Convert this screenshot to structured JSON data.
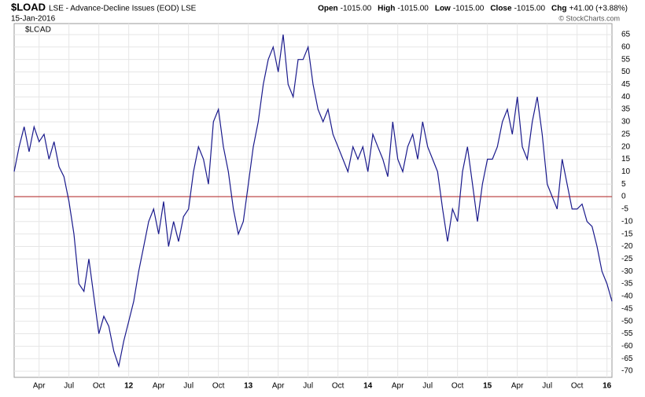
{
  "header": {
    "symbol": "$LOAD",
    "description": "LSE - Advance-Decline Issues (EOD) LSE",
    "date": "15-Jan-2016",
    "quote": [
      {
        "label": "Open",
        "value": "-1015.00"
      },
      {
        "label": "High",
        "value": "-1015.00"
      },
      {
        "label": "Low",
        "value": "-1015.00"
      },
      {
        "label": "Close",
        "value": "-1015.00"
      },
      {
        "label": "Chg",
        "value": "+41.00 (+3.88%)"
      }
    ],
    "credit": "© StockCharts.com"
  },
  "chart_data": {
    "type": "line",
    "categories": [
      null,
      null,
      null,
      null,
      null,
      "Apr",
      null,
      null,
      null,
      null,
      null,
      "Jul",
      null,
      null,
      null,
      null,
      null,
      "Oct",
      null,
      null,
      null,
      null,
      null,
      "12",
      null,
      null,
      null,
      null,
      null,
      "Apr",
      null,
      null,
      null,
      null,
      null,
      "Jul",
      null,
      null,
      null,
      null,
      null,
      "Oct",
      null,
      null,
      null,
      null,
      null,
      "13",
      null,
      null,
      null,
      null,
      null,
      "Apr",
      null,
      null,
      null,
      null,
      null,
      "Jul",
      null,
      null,
      null,
      null,
      null,
      "Oct",
      null,
      null,
      null,
      null,
      null,
      "14",
      null,
      null,
      null,
      null,
      null,
      "Apr",
      null,
      null,
      null,
      null,
      null,
      "Jul",
      null,
      null,
      null,
      null,
      null,
      "Oct",
      null,
      null,
      null,
      null,
      null,
      "15",
      null,
      null,
      null,
      null,
      null,
      "Apr",
      null,
      null,
      null,
      null,
      null,
      "Jul",
      null,
      null,
      null,
      null,
      null,
      "Oct",
      null,
      null,
      null,
      null,
      null,
      "16",
      null
    ],
    "series": [
      {
        "name": "$LOAD",
        "color": "#1a1a8c",
        "values": [
          10,
          20,
          28,
          18,
          28,
          22,
          25,
          15,
          22,
          12,
          8,
          -2,
          -15,
          -35,
          -38,
          -25,
          -40,
          -55,
          -48,
          -52,
          -62,
          -68,
          -58,
          -50,
          -42,
          -30,
          -20,
          -10,
          -5,
          -15,
          -2,
          -20,
          -10,
          -18,
          -8,
          -5,
          10,
          20,
          15,
          5,
          30,
          35,
          20,
          10,
          -5,
          -15,
          -10,
          5,
          20,
          30,
          45,
          55,
          60,
          50,
          65,
          45,
          40,
          55,
          55,
          60,
          45,
          35,
          30,
          35,
          25,
          20,
          15,
          10,
          20,
          15,
          20,
          10,
          25,
          20,
          15,
          8,
          30,
          15,
          10,
          20,
          25,
          15,
          30,
          20,
          15,
          10,
          -5,
          -18,
          -5,
          -10,
          10,
          20,
          5,
          -10,
          5,
          15,
          15,
          20,
          30,
          35,
          25,
          40,
          20,
          15,
          30,
          40,
          25,
          5,
          0,
          -5,
          15,
          5,
          -5,
          -5,
          -3,
          -10,
          -12,
          -20,
          -30,
          -35,
          -42
        ]
      }
    ],
    "ylim": [
      -72.5,
      69.4
    ],
    "yticks": [
      65,
      60,
      55,
      50,
      45,
      40,
      35,
      30,
      25,
      20,
      15,
      10,
      5,
      0,
      -5,
      -10,
      -15,
      -20,
      -25,
      -30,
      -35,
      -40,
      -45,
      -50,
      -55,
      -60,
      -65,
      -70
    ],
    "grid": true,
    "reference_line": {
      "value": 0,
      "color": "#b22222"
    }
  }
}
